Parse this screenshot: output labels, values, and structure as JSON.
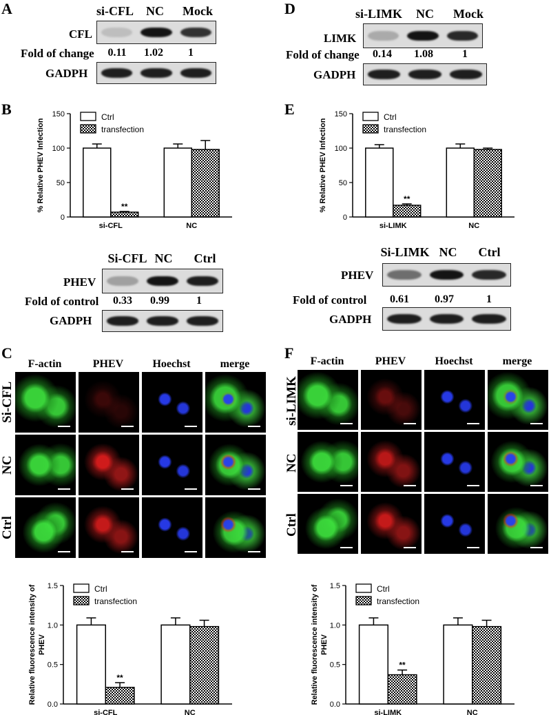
{
  "panels": {
    "A": {
      "letter": "A",
      "cols": [
        "si-CFL",
        "NC",
        "Mock"
      ],
      "target_label": "CFL",
      "fold_label": "Fold of change",
      "fold_values": [
        "0.11",
        "1.02",
        "1"
      ],
      "control_label": "GADPH",
      "band_intensity": [
        0.15,
        1.0,
        0.85
      ]
    },
    "D": {
      "letter": "D",
      "cols": [
        "si-LIMK",
        "NC",
        "Mock"
      ],
      "target_label": "LIMK",
      "fold_label": "Fold of change",
      "fold_values": [
        "0.14",
        "1.08",
        "1"
      ],
      "control_label": "GADPH",
      "band_intensity": [
        0.25,
        1.0,
        0.9
      ]
    },
    "B": {
      "letter": "B",
      "blot_cols": [
        "Si-CFL",
        "NC",
        "Ctrl"
      ],
      "blot_target": "PHEV",
      "fold_label": "Fold of control",
      "fold_values": [
        "0.33",
        "0.99",
        "1"
      ],
      "control_label": "GADPH",
      "band_intensity": [
        0.3,
        1.0,
        0.95
      ]
    },
    "E": {
      "letter": "E",
      "blot_cols": [
        "Si-LIMK",
        "NC",
        "Ctrl"
      ],
      "blot_target": "PHEV",
      "fold_label": "Fold of control",
      "fold_values": [
        "0.61",
        "0.97",
        "1"
      ],
      "control_label": "GADPH",
      "band_intensity": [
        0.55,
        1.0,
        0.9
      ]
    },
    "C": {
      "letter": "C",
      "headers": [
        "F-actin",
        "PHEV",
        "Hoechst",
        "merge"
      ],
      "rows": [
        "Si-CFL",
        "NC",
        "Ctrl"
      ],
      "phev_intensity": [
        0.25,
        0.9,
        0.85
      ]
    },
    "F": {
      "letter": "F",
      "headers": [
        "F-actin",
        "PHEV",
        "Hoechst",
        "merge"
      ],
      "rows": [
        "si-LIMK",
        "NC",
        "Ctrl"
      ],
      "phev_intensity": [
        0.45,
        0.8,
        0.85
      ]
    }
  },
  "chart_data": [
    {
      "id": "B",
      "type": "bar",
      "categories": [
        "si-CFL",
        "NC"
      ],
      "series": [
        {
          "name": "Ctrl",
          "values": [
            100,
            100
          ],
          "errors": [
            6,
            6
          ],
          "pattern": "white"
        },
        {
          "name": "transfection",
          "values": [
            7,
            98
          ],
          "errors": [
            1,
            13
          ],
          "pattern": "checker"
        }
      ],
      "ylabel": "% Relative PHEV Infection",
      "ylim": [
        0,
        150
      ],
      "yticks": [
        "0",
        "50",
        "100",
        "150"
      ],
      "annotations": [
        {
          "category": "si-CFL",
          "series": "transfection",
          "text": "**"
        }
      ],
      "legend": "top-left"
    },
    {
      "id": "E",
      "type": "bar",
      "categories": [
        "si-LIMK",
        "NC"
      ],
      "series": [
        {
          "name": "Ctrl",
          "values": [
            100,
            100
          ],
          "errors": [
            5,
            6
          ],
          "pattern": "white"
        },
        {
          "name": "transfection",
          "values": [
            17,
            98
          ],
          "errors": [
            2,
            2
          ],
          "pattern": "checker"
        }
      ],
      "ylabel": "% Relative PHEV Infection",
      "ylim": [
        0,
        150
      ],
      "yticks": [
        "0",
        "50",
        "100",
        "150"
      ],
      "annotations": [
        {
          "category": "si-LIMK",
          "series": "transfection",
          "text": "**"
        }
      ],
      "legend": "top-left"
    },
    {
      "id": "C",
      "type": "bar",
      "categories": [
        "si-CFL",
        "NC"
      ],
      "series": [
        {
          "name": "Ctrl",
          "values": [
            1.0,
            1.0
          ],
          "errors": [
            0.09,
            0.09
          ],
          "pattern": "white"
        },
        {
          "name": "transfection",
          "values": [
            0.21,
            0.98
          ],
          "errors": [
            0.06,
            0.08
          ],
          "pattern": "checker"
        }
      ],
      "ylabel": "Relative fluorescence intensity of PHEV",
      "ylim": [
        0,
        1.5
      ],
      "yticks": [
        "0.0",
        "0.5",
        "1.0",
        "1.5"
      ],
      "annotations": [
        {
          "category": "si-CFL",
          "series": "transfection",
          "text": "**"
        }
      ],
      "legend": "top-left"
    },
    {
      "id": "F",
      "type": "bar",
      "categories": [
        "si-LIMK",
        "NC"
      ],
      "series": [
        {
          "name": "Ctrl",
          "values": [
            1.0,
            1.0
          ],
          "errors": [
            0.09,
            0.09
          ],
          "pattern": "white"
        },
        {
          "name": "transfection",
          "values": [
            0.37,
            0.98
          ],
          "errors": [
            0.06,
            0.08
          ],
          "pattern": "checker"
        }
      ],
      "ylabel": "Relative fluorescence intensity of PHEV",
      "ylim": [
        0,
        1.5
      ],
      "yticks": [
        "0.0",
        "0.5",
        "1.0",
        "1.5"
      ],
      "annotations": [
        {
          "category": "si-LIMK",
          "series": "transfection",
          "text": "**"
        }
      ],
      "legend": "top-left"
    }
  ]
}
